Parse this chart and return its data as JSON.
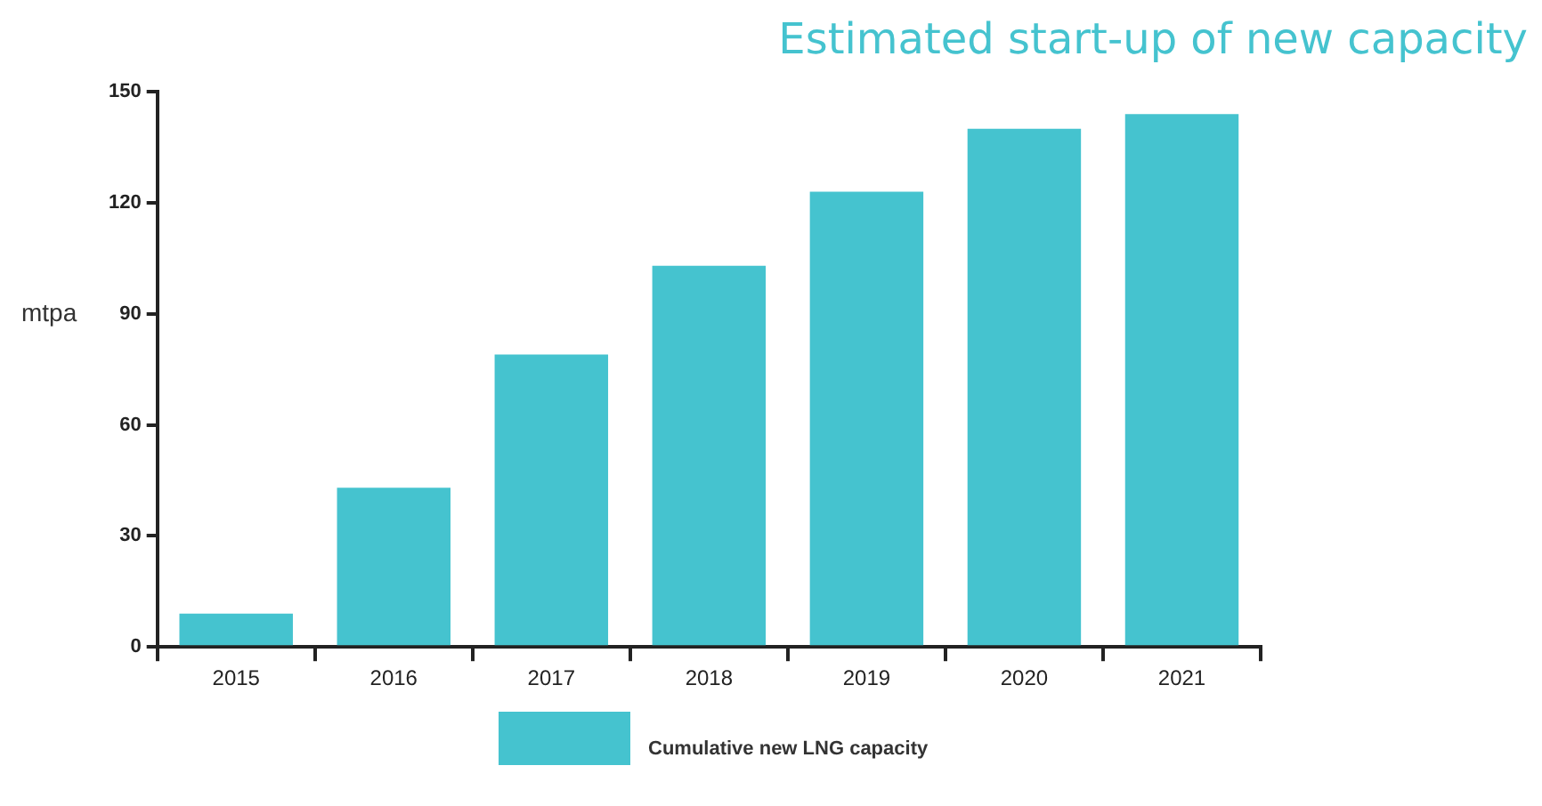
{
  "chart_data": {
    "type": "bar",
    "title": "Estimated start-up of new capacity",
    "ylabel": "mtpa",
    "categories": [
      "2015",
      "2016",
      "2017",
      "2018",
      "2019",
      "2020",
      "2021"
    ],
    "series": [
      {
        "name": "Cumulative new LNG capacity",
        "color": "#45c3cf",
        "values": [
          9,
          43,
          79,
          103,
          123,
          140,
          144
        ]
      }
    ],
    "ylim": [
      0,
      150
    ],
    "yticks": [
      0,
      30,
      60,
      90,
      120,
      150
    ],
    "grid": false,
    "legend": "bottom"
  }
}
